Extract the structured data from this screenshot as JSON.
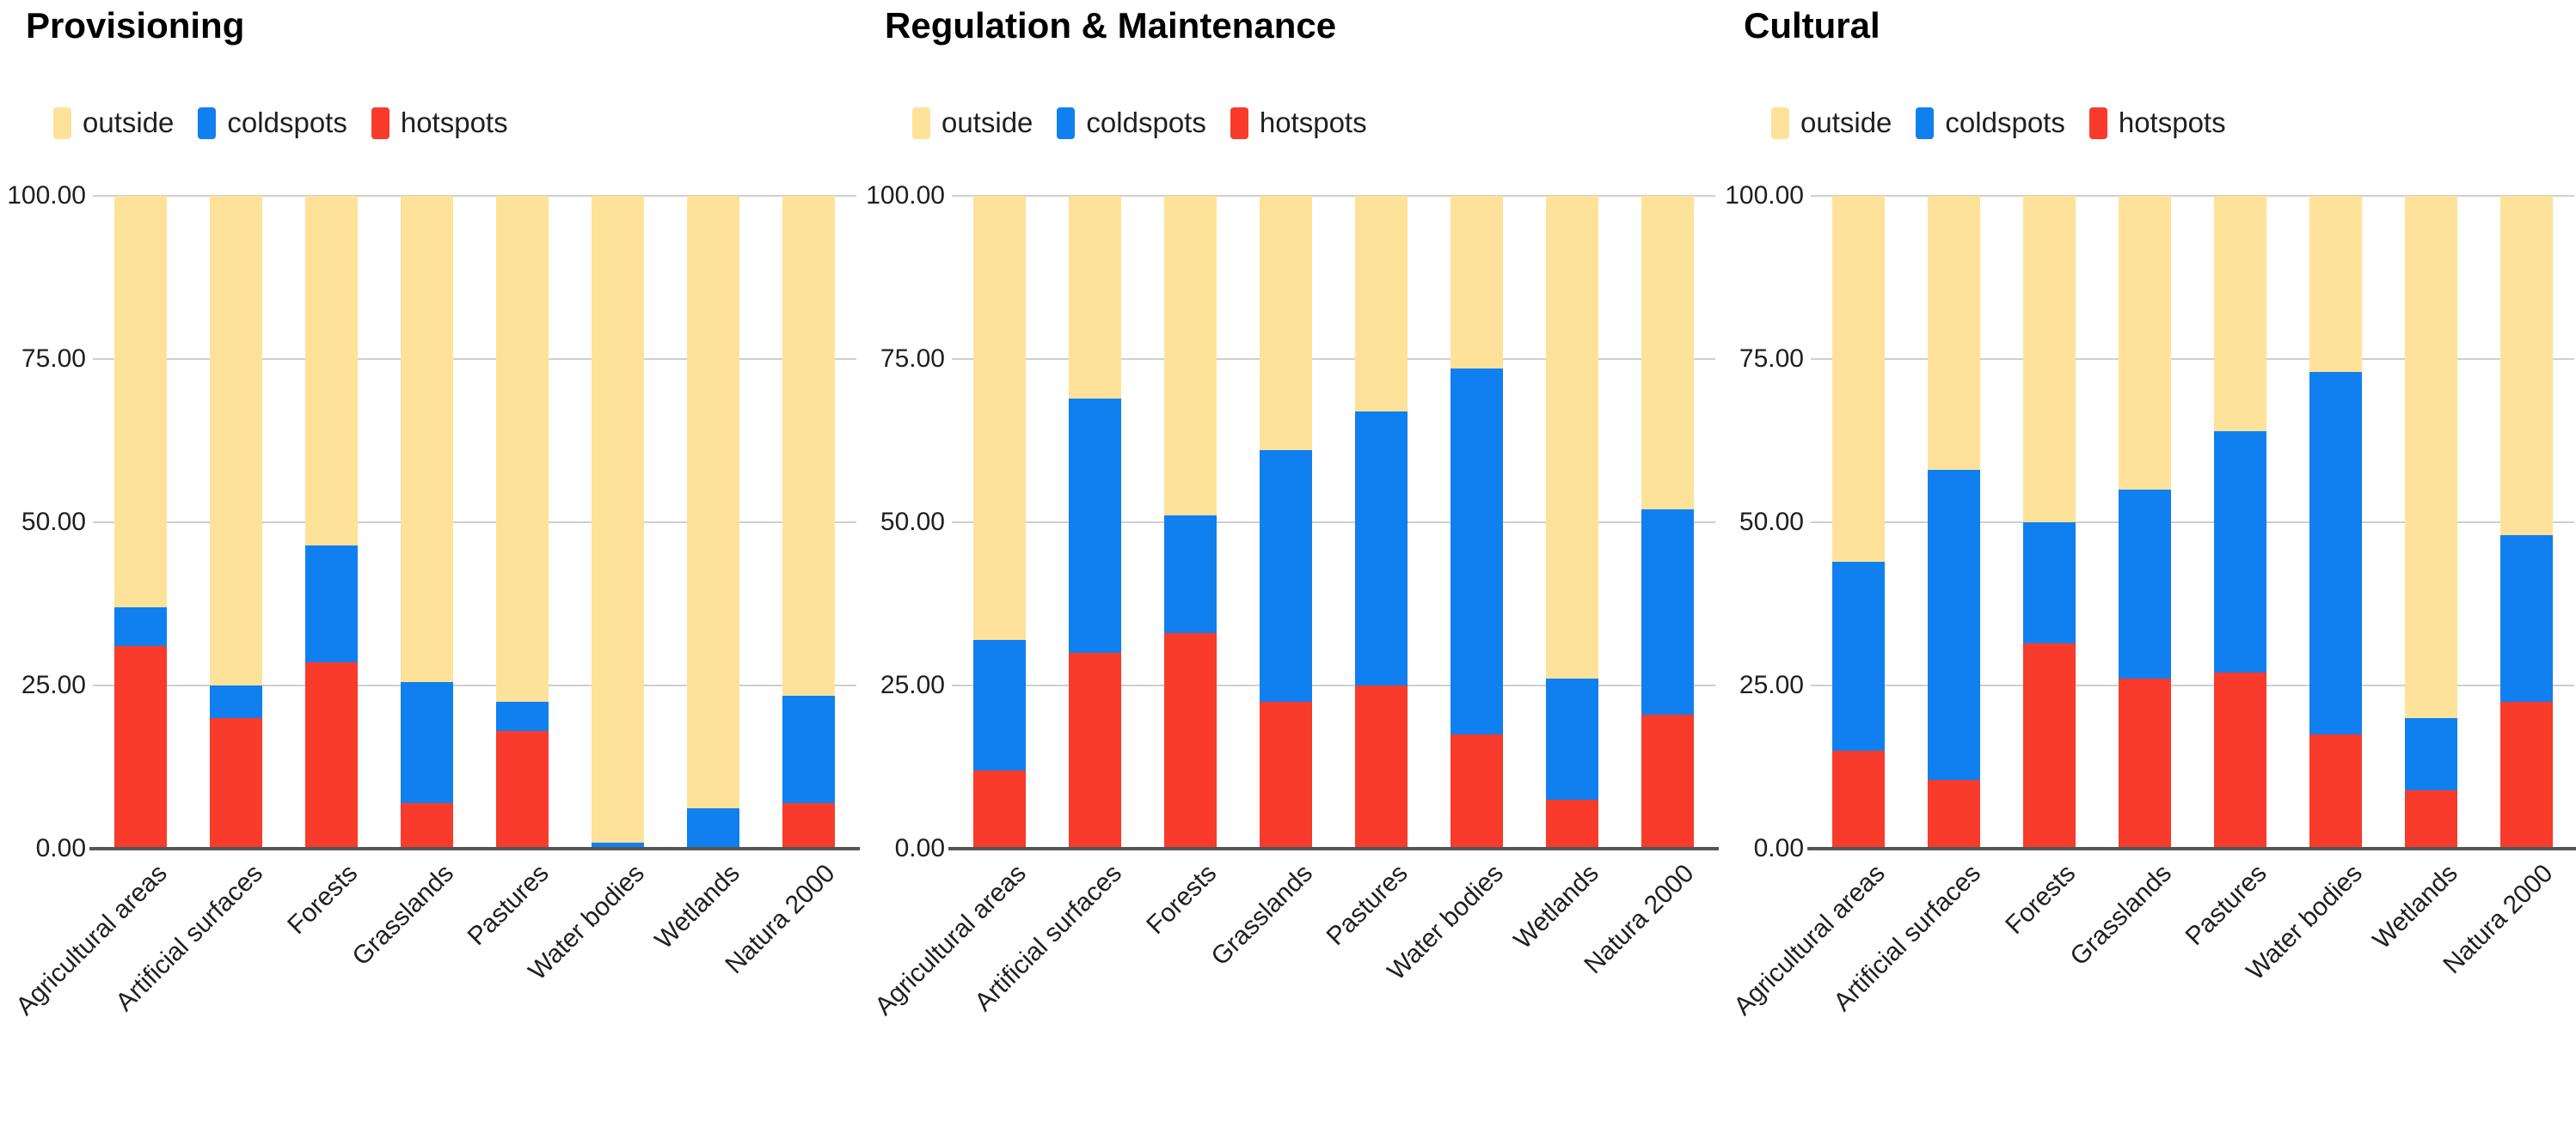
{
  "colors": {
    "outside": "#ffe299",
    "coldspots": "#1080f0",
    "hotspots": "#f83b2a",
    "gridline": "#cfcfcf",
    "axis_line": "#555555",
    "text": "#1f1f1f",
    "title_text": "#000000"
  },
  "legend": {
    "items": [
      {
        "key": "outside",
        "label": "outside"
      },
      {
        "key": "coldspots",
        "label": "coldspots"
      },
      {
        "key": "hotspots",
        "label": "hotspots"
      }
    ]
  },
  "y_axis": {
    "ticks": [
      {
        "value": 100,
        "label": "100.00"
      },
      {
        "value": 75,
        "label": "75.00"
      },
      {
        "value": 50,
        "label": "50.00"
      },
      {
        "value": 25,
        "label": "25.00"
      },
      {
        "value": 0,
        "label": "0.00"
      }
    ],
    "min": 0,
    "max": 100
  },
  "chart_data": [
    {
      "type": "bar",
      "stacked": true,
      "title": "Provisioning",
      "categories": [
        "Agricultural areas",
        "Artificial surfaces",
        "Forests",
        "Grasslands",
        "Pastures",
        "Water bodies",
        "Wetlands",
        "Natura 2000"
      ],
      "series": [
        {
          "name": "hotspots",
          "values": [
            31.0,
            20.0,
            28.5,
            7.0,
            18.0,
            0.2,
            0.0,
            7.0
          ]
        },
        {
          "name": "coldspots",
          "values": [
            6.0,
            5.0,
            18.0,
            18.5,
            4.5,
            0.7,
            6.2,
            16.4
          ]
        },
        {
          "name": "outside",
          "values": [
            63.0,
            75.0,
            53.5,
            74.5,
            77.5,
            99.1,
            93.8,
            76.6
          ]
        }
      ],
      "ylim": [
        0,
        100
      ],
      "grid": true,
      "legend_position": "top"
    },
    {
      "type": "bar",
      "stacked": true,
      "title": "Regulation & Maintenance",
      "categories": [
        "Agricultural areas",
        "Artificial surfaces",
        "Forests",
        "Grasslands",
        "Pastures",
        "Water bodies",
        "Wetlands",
        "Natura 2000"
      ],
      "series": [
        {
          "name": "hotspots",
          "values": [
            12.0,
            30.0,
            33.0,
            22.5,
            25.0,
            17.5,
            7.5,
            20.5
          ]
        },
        {
          "name": "coldspots",
          "values": [
            20.0,
            39.0,
            18.0,
            38.5,
            42.0,
            56.0,
            18.5,
            31.5
          ]
        },
        {
          "name": "outside",
          "values": [
            68.0,
            31.0,
            49.0,
            39.0,
            33.0,
            26.5,
            74.0,
            48.0
          ]
        }
      ],
      "ylim": [
        0,
        100
      ],
      "grid": true,
      "legend_position": "top"
    },
    {
      "type": "bar",
      "stacked": true,
      "title": "Cultural",
      "categories": [
        "Agricultural areas",
        "Artificial surfaces",
        "Forests",
        "Grasslands",
        "Pastures",
        "Water bodies",
        "Wetlands",
        "Natura 2000"
      ],
      "series": [
        {
          "name": "hotspots",
          "values": [
            15.0,
            10.5,
            31.5,
            26.0,
            27.0,
            17.5,
            9.0,
            22.5
          ]
        },
        {
          "name": "coldspots",
          "values": [
            29.0,
            47.5,
            18.5,
            29.0,
            37.0,
            55.5,
            11.0,
            25.5
          ]
        },
        {
          "name": "outside",
          "values": [
            56.0,
            42.0,
            50.0,
            45.0,
            36.0,
            27.0,
            80.0,
            52.0
          ]
        }
      ],
      "ylim": [
        0,
        100
      ],
      "grid": true,
      "legend_position": "top"
    }
  ]
}
